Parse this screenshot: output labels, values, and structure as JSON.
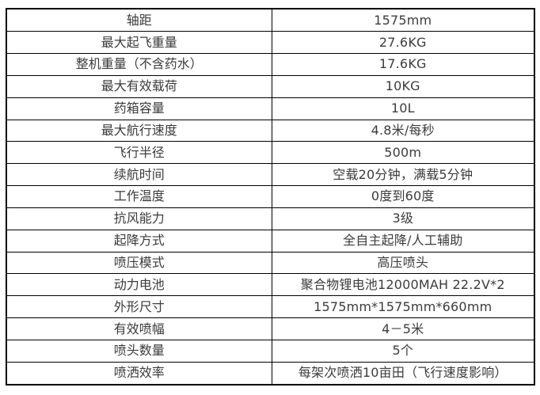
{
  "page": {
    "background": "#ffffff",
    "border_color": "#000000",
    "text_color": "#3b3b3b"
  },
  "table": {
    "columns": [
      "parameter",
      "value"
    ],
    "rows": [
      {
        "label": "轴距",
        "value": "1575mm"
      },
      {
        "label": "最大起飞重量",
        "value": "27.6KG"
      },
      {
        "label": "整机重量（不含药水）",
        "value": "17.6KG"
      },
      {
        "label": "最大有效载荷",
        "value": "10KG"
      },
      {
        "label": "药箱容量",
        "value": "10L"
      },
      {
        "label": "最大航行速度",
        "value": "4.8米/每秒"
      },
      {
        "label": "飞行半径",
        "value": "500m"
      },
      {
        "label": "续航时间",
        "value": "空载20分钟，满载5分钟"
      },
      {
        "label": "工作温度",
        "value": "0度到60度"
      },
      {
        "label": "抗风能力",
        "value": "3级"
      },
      {
        "label": "起降方式",
        "value": "全自主起降/人工辅助"
      },
      {
        "label": "喷压模式",
        "value": "高压喷头"
      },
      {
        "label": "动力电池",
        "value": "聚合物锂电池12000MAH 22.2V*2"
      },
      {
        "label": "外形尺寸",
        "value": "1575mm*1575mm*660mm"
      },
      {
        "label": "有效喷幅",
        "value": "4－5米"
      },
      {
        "label": "喷头数量",
        "value": "5个"
      },
      {
        "label": "喷洒效率",
        "value": "每架次喷洒10亩田（飞行速度影响）"
      }
    ]
  }
}
